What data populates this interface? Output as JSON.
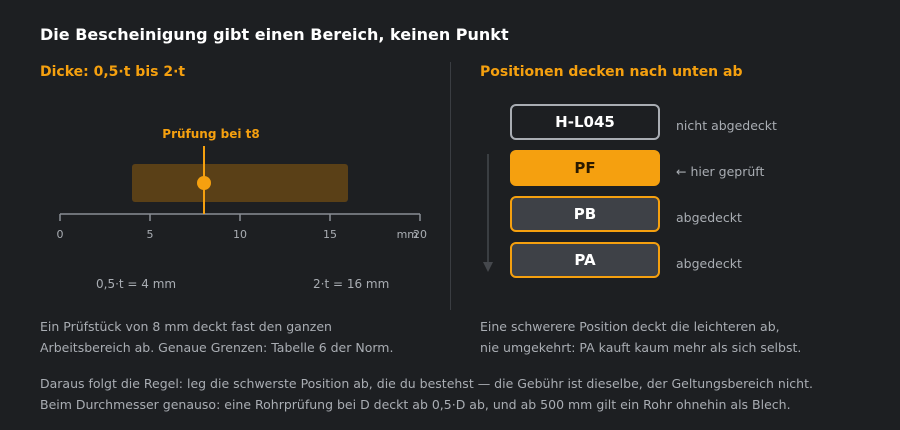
{
  "title": "Die Bescheinigung gibt einen Bereich, keinen Punkt",
  "left": {
    "heading": "Dicke: 0,5·t bis 2·t",
    "chart": {
      "axis_unit": "mm",
      "axis_range": [
        0,
        20
      ],
      "ticks": [
        {
          "value": 0,
          "label": "0"
        },
        {
          "value": 5,
          "label": "5"
        },
        {
          "value": 10,
          "label": "10"
        },
        {
          "value": 15,
          "label": "15"
        },
        {
          "value": 20,
          "label": "20"
        }
      ],
      "range_start": 4,
      "range_end": 16,
      "test_value": 8,
      "test_label": "Prüfung bei t8",
      "range_colors": {
        "fill": "#5a4017",
        "marker": "#f5a00f"
      }
    },
    "bound_labels": {
      "lower": "0,5·t = 4 mm",
      "upper": "2·t = 16 mm"
    },
    "paragraph": [
      "Ein Prüfstück von 8 mm deckt fast den ganzen",
      "Arbeitsbereich ab. Genaue Grenzen: Tabelle 6 der Norm."
    ]
  },
  "right": {
    "heading": "Positionen decken nach unten ab",
    "positions": [
      {
        "code": "H-L045",
        "note": "nicht abgedeckt",
        "state": "not-covered"
      },
      {
        "code": "PF",
        "note": "← hier geprüft",
        "state": "tested"
      },
      {
        "code": "PB",
        "note": "abgedeckt",
        "state": "covered"
      },
      {
        "code": "PA",
        "note": "abgedeckt",
        "state": "covered"
      }
    ],
    "paragraph": [
      "Eine schwerere Position deckt die leichteren ab,",
      "nie umgekehrt: PA kauft kaum mehr als sich selbst."
    ]
  },
  "footer": [
    "Daraus folgt die Regel: leg die schwerste Position ab, die du bestehst — die Gebühr ist dieselbe, der Geltungsbereich nicht.",
    "Beim Durchmesser genauso: eine Rohrprüfung bei D deckt ab 0,5·D ab, und ab 500 mm gilt ein Rohr ohnehin als Blech."
  ],
  "colors": {
    "accent": "#f5a00f",
    "tested_text": "#2a1a00",
    "covered_bg": "#3e4147",
    "not_covered_border": "#a9adb3"
  }
}
